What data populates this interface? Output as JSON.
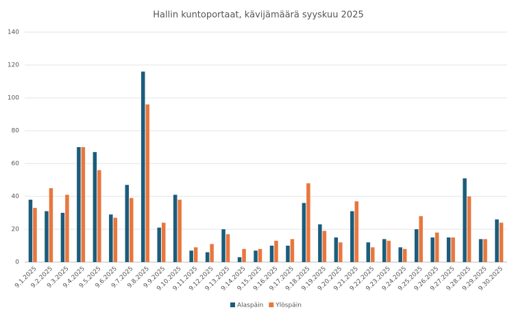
{
  "chart_data": {
    "type": "bar",
    "title": "Hallin kuntoportaat, kävijämäärä syyskuu 2025",
    "categories": [
      "9.1.2025",
      "9.2.2025",
      "9.3.2025",
      "9.4.2025",
      "9.5.2025",
      "9.6.2025",
      "9.7.2025",
      "9.8.2025",
      "9.9.2025",
      "9.10.2025",
      "9.11.2025",
      "9.12.2025",
      "9.13.2025",
      "9.14.2025",
      "9.15.2025",
      "9.16.2025",
      "9.17.2025",
      "9.18.2025",
      "9.19.2025",
      "9.20.2025",
      "9.21.2025",
      "9.22.2025",
      "9.23.2025",
      "9.24.2025",
      "9.25.2025",
      "9.26.2025",
      "9.27.2025",
      "9.28.2025",
      "9.29.2025",
      "9.30.2025"
    ],
    "series": [
      {
        "name": "Alaspäin",
        "color": "#1b5c7c",
        "values": [
          38,
          31,
          30,
          70,
          67,
          29,
          47,
          116,
          21,
          41,
          7,
          6,
          20,
          3,
          7,
          10,
          10,
          36,
          23,
          15,
          31,
          12,
          14,
          9,
          20,
          15,
          15,
          51,
          14,
          26
        ]
      },
      {
        "name": "Ylöspäin",
        "color": "#e8773e",
        "values": [
          33,
          45,
          41,
          70,
          56,
          27,
          39,
          96,
          24,
          38,
          9,
          11,
          17,
          8,
          8,
          13,
          14,
          48,
          19,
          12,
          37,
          9,
          13,
          8,
          28,
          18,
          15,
          40,
          14,
          24
        ]
      }
    ],
    "ylim": [
      0,
      140
    ],
    "yticks": [
      0,
      20,
      40,
      60,
      80,
      100,
      120,
      140
    ],
    "grid": true,
    "legend": "bottom"
  }
}
